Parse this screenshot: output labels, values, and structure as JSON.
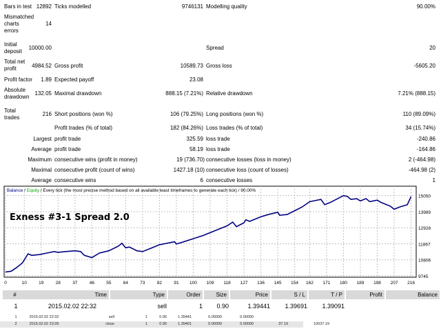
{
  "report": {
    "bars_in_test_label": "Bars in test",
    "bars_in_test": "12892",
    "ticks_modelled_label": "Ticks modelled",
    "ticks_modelled": "9746131",
    "modelling_quality_label": "Modelling quality",
    "modelling_quality": "90.00%",
    "mismatched_label_1": "Mismatched",
    "mismatched_label_2": "charts",
    "mismatched_label_3": "errors",
    "mismatched": "14",
    "initial_deposit_label_1": "Initial",
    "initial_deposit_label_2": "deposit",
    "initial_deposit": "10000.00",
    "spread_label": "Spread",
    "spread": "20",
    "total_net_profit_label_1": "Total net",
    "total_net_profit_label_2": "profit",
    "total_net_profit": "4984.52",
    "gross_profit_label": "Gross profit",
    "gross_profit": "10589.73",
    "gross_loss_label": "Gross loss",
    "gross_loss": "-5605.20",
    "profit_factor_label": "Profit factor",
    "profit_factor": "1.89",
    "expected_payoff_label": "Expected payoff",
    "expected_payoff": "23.08",
    "absolute_drawdown_label_1": "Absolute",
    "absolute_drawdown_label_2": "drawdown",
    "absolute_drawdown": "132.05",
    "maximal_drawdown_label": "Maximal drawdown",
    "maximal_drawdown": "888.15 (7.21%)",
    "relative_drawdown_label": "Relative drawdown",
    "relative_drawdown": "7.21% (888.15)",
    "total_trades_label_1": "Total",
    "total_trades_label_2": "trades",
    "total_trades": "216",
    "short_label": "Short positions (won %)",
    "short": "106 (79.25%)",
    "long_label": "Long positions (won %)",
    "long": "110 (89.09%)",
    "profit_trades_label": "Profit trades (% of total)",
    "profit_trades": "182 (84.26%)",
    "loss_trades_label": "Loss trades (% of total)",
    "loss_trades": "34 (15.74%)",
    "largest_label": "Largest",
    "largest_profit_label": "profit trade",
    "largest_profit": "325.59",
    "largest_loss_label": "loss trade",
    "largest_loss": "-240.86",
    "average_label": "Average",
    "average_profit_label": "profit trade",
    "average_profit": "58.19",
    "average_loss_label": "loss trade",
    "average_loss": "-164.86",
    "maximum_label": "Maximum",
    "max_cons_wins_label": "consecutive wins (profit in money)",
    "max_cons_wins": "19 (736.70)",
    "max_cons_losses_label": "consecutive losses (loss in money)",
    "max_cons_losses": "2 (-464.98)",
    "maximal_label": "Maximal",
    "maximal_cons_profit_label": "consecutive profit (count of wins)",
    "maximal_cons_profit": "1427.18 (10)",
    "maximal_cons_loss_label": "consecutive loss (count of losses)",
    "maximal_cons_loss": "-464.98 (2)",
    "avg_cons_label": "Average",
    "avg_cons_wins_label": "consecutive wins",
    "avg_cons_wins": "6",
    "avg_cons_losses_label": "consecutive losses",
    "avg_cons_losses": "1"
  },
  "chart_data": {
    "type": "line",
    "legend_balance": "Balance",
    "legend_sep1": " / ",
    "legend_equity": "Equity",
    "legend_rest": " / Every tick (the most precise method based on all available least timeframes to generate each tick) / 90.00%",
    "overlay_text": "Exness #3-1  Spread 2.0",
    "xticks": [
      0,
      10,
      19,
      28,
      37,
      46,
      55,
      64,
      73,
      82,
      91,
      100,
      109,
      118,
      127,
      136,
      145,
      154,
      162,
      171,
      180,
      189,
      198,
      207,
      216
    ],
    "yticks": [
      9745,
      10806,
      11867,
      12928,
      13989,
      15050
    ],
    "xlim": [
      0,
      218
    ],
    "ylim": [
      9745,
      15400
    ],
    "colors": {
      "balance": "#000080",
      "equity": "#00a000",
      "grid": "#c0c0c0"
    },
    "series": [
      {
        "name": "Balance",
        "x": [
          0,
          3,
          6,
          9,
          12,
          14,
          18,
          22,
          26,
          28,
          32,
          37,
          40,
          42,
          46,
          50,
          55,
          60,
          62,
          64,
          66,
          70,
          73,
          78,
          82,
          86,
          90,
          91,
          95,
          100,
          105,
          109,
          114,
          118,
          121,
          123,
          127,
          128,
          130,
          136,
          140,
          145,
          146,
          150,
          154,
          158,
          162,
          166,
          168,
          170,
          173,
          180,
          182,
          184,
          187,
          189,
          192,
          194,
          198,
          200,
          203,
          205,
          207,
          210,
          214,
          216
        ],
        "y": [
          10000,
          10050,
          10300,
          10600,
          11200,
          11100,
          11150,
          11250,
          11350,
          11300,
          11350,
          11400,
          11350,
          11100,
          10950,
          11250,
          11400,
          11700,
          11900,
          11600,
          11650,
          11400,
          11350,
          11600,
          11800,
          11900,
          12000,
          11850,
          12000,
          12200,
          12400,
          12600,
          12850,
          13050,
          13300,
          13000,
          13250,
          13450,
          13350,
          13650,
          13800,
          13950,
          13750,
          13800,
          14050,
          14300,
          14650,
          14750,
          14800,
          14450,
          14600,
          15050,
          15000,
          14800,
          14850,
          14700,
          14850,
          14650,
          14750,
          14600,
          14450,
          14350,
          14150,
          14300,
          14450,
          14985
        ]
      }
    ]
  },
  "trades_header": [
    "#",
    "Time",
    "Type",
    "Order",
    "Size",
    "Price",
    "S / L",
    "T / P",
    "Profit",
    "Balance"
  ],
  "trade_row": [
    "1",
    "2015.02.02 22:32",
    "sell",
    "1",
    "0.90",
    "1.39441",
    "1.39691",
    "1.39091",
    "",
    ""
  ],
  "small_rows": [
    [
      "1",
      "2015.02.02 22:32",
      "sell",
      "1",
      "0.90",
      "1.39441",
      "0.00000",
      "0.00000",
      "",
      ""
    ],
    [
      "2",
      "2015.02.02 23:39",
      "close",
      "1",
      "0.90",
      "1.39401",
      "0.00000",
      "0.00000",
      "37.19",
      "10037.19"
    ]
  ]
}
